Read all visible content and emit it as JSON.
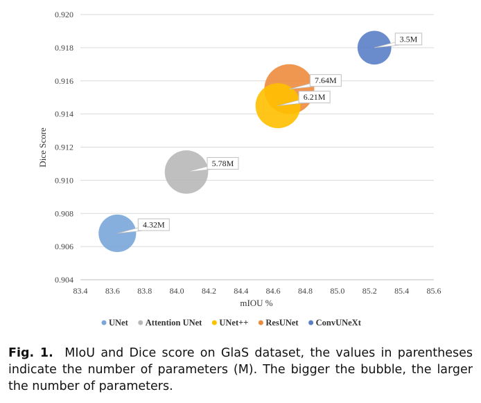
{
  "chart_data": {
    "type": "bubble",
    "xlabel": "mIOU %",
    "ylabel": "Dice Score",
    "xlim": [
      83.4,
      85.6
    ],
    "ylim": [
      0.904,
      0.92
    ],
    "x_ticks": [
      "83.4",
      "83.6",
      "83.8",
      "84.0",
      "84.2",
      "84.4",
      "84.6",
      "84.8",
      "85.0",
      "85.2",
      "85.4",
      "85.6"
    ],
    "y_ticks": [
      "0.904",
      "0.906",
      "0.908",
      "0.910",
      "0.912",
      "0.914",
      "0.916",
      "0.918",
      "0.920"
    ],
    "grid": "horizontal",
    "legend_position": "bottom",
    "series": [
      {
        "name": "UNet",
        "x": 83.63,
        "y": 0.9068,
        "label": "4.32M",
        "params": 4.32,
        "color": "#7aa6d9"
      },
      {
        "name": "Attention UNet",
        "x": 84.06,
        "y": 0.9105,
        "label": "5.78M",
        "params": 5.78,
        "color": "#b8b8b8"
      },
      {
        "name": "UNet++",
        "x": 84.63,
        "y": 0.9145,
        "label": "6.21M",
        "params": 6.21,
        "color": "#ffc000"
      },
      {
        "name": "ResUNet",
        "x": 84.7,
        "y": 0.9155,
        "label": "7.64M",
        "params": 7.64,
        "color": "#ed8b3d"
      },
      {
        "name": "ConvUNeXt",
        "x": 85.23,
        "y": 0.918,
        "label": "3.5M",
        "params": 3.5,
        "color": "#5b7fc7"
      }
    ]
  },
  "caption": {
    "figure_label": "Fig. 1.",
    "text": "MIoU and Dice score on GlaS dataset, the values in parentheses indicate the number of parameters (M). The bigger the bubble, the larger the number of parameters."
  }
}
